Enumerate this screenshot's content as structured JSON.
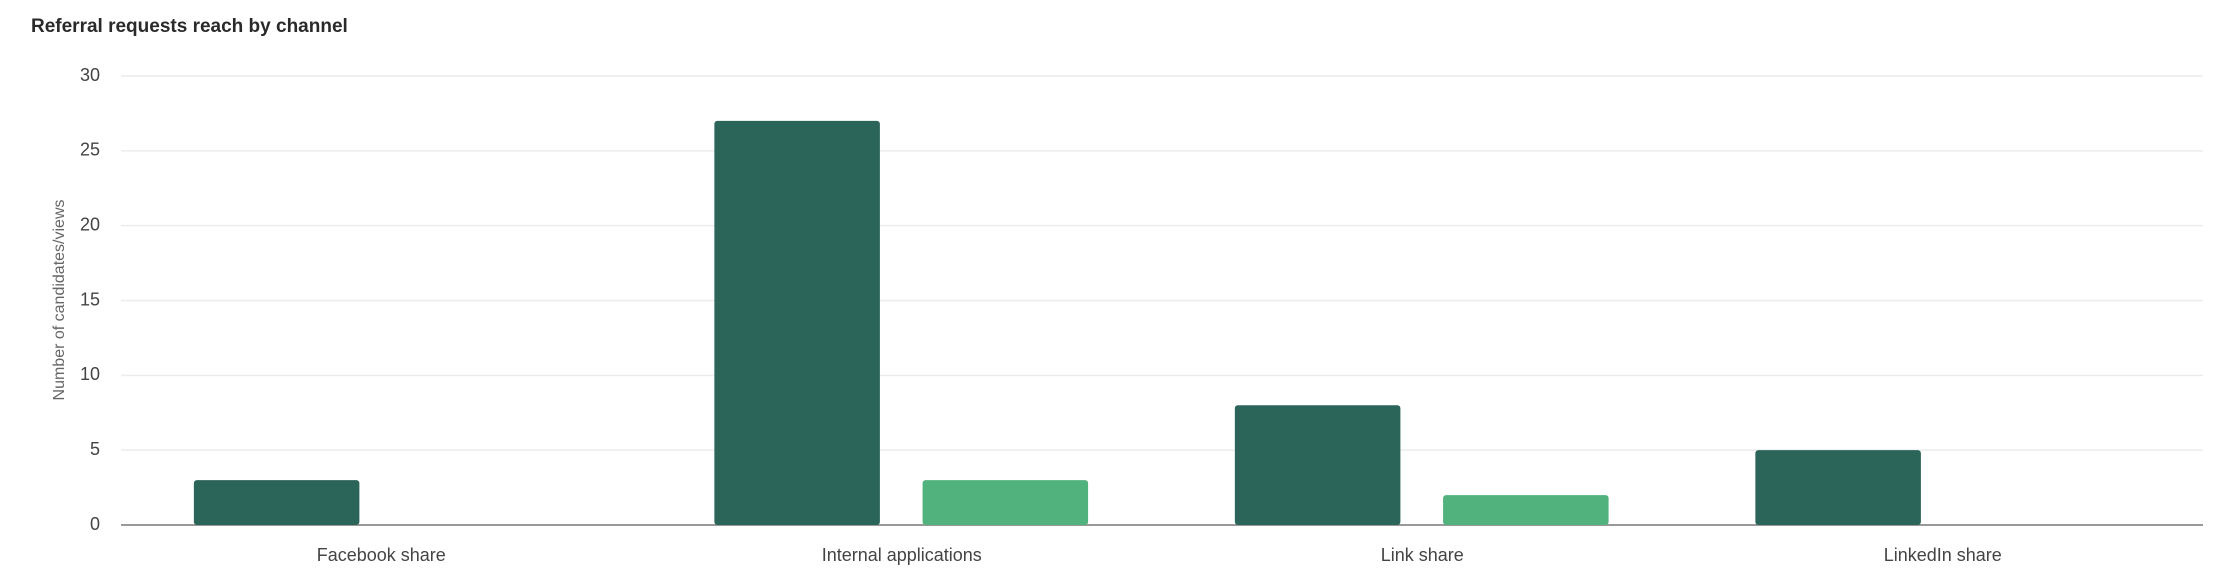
{
  "chart_data": {
    "type": "bar",
    "title": "Referral requests reach by channel",
    "y_label": "Number of candidates/views",
    "categories": [
      "Facebook share",
      "Internal applications",
      "Link share",
      "LinkedIn share"
    ],
    "series": [
      {
        "color": "#2b6458",
        "values": [
          3,
          27,
          8,
          5
        ]
      },
      {
        "color": "#52b27d",
        "values": [
          0,
          3,
          2,
          0
        ]
      }
    ],
    "ylim": [
      0,
      30
    ],
    "yticks": [
      0,
      5,
      10,
      15,
      20,
      25,
      30
    ],
    "grid": true
  }
}
